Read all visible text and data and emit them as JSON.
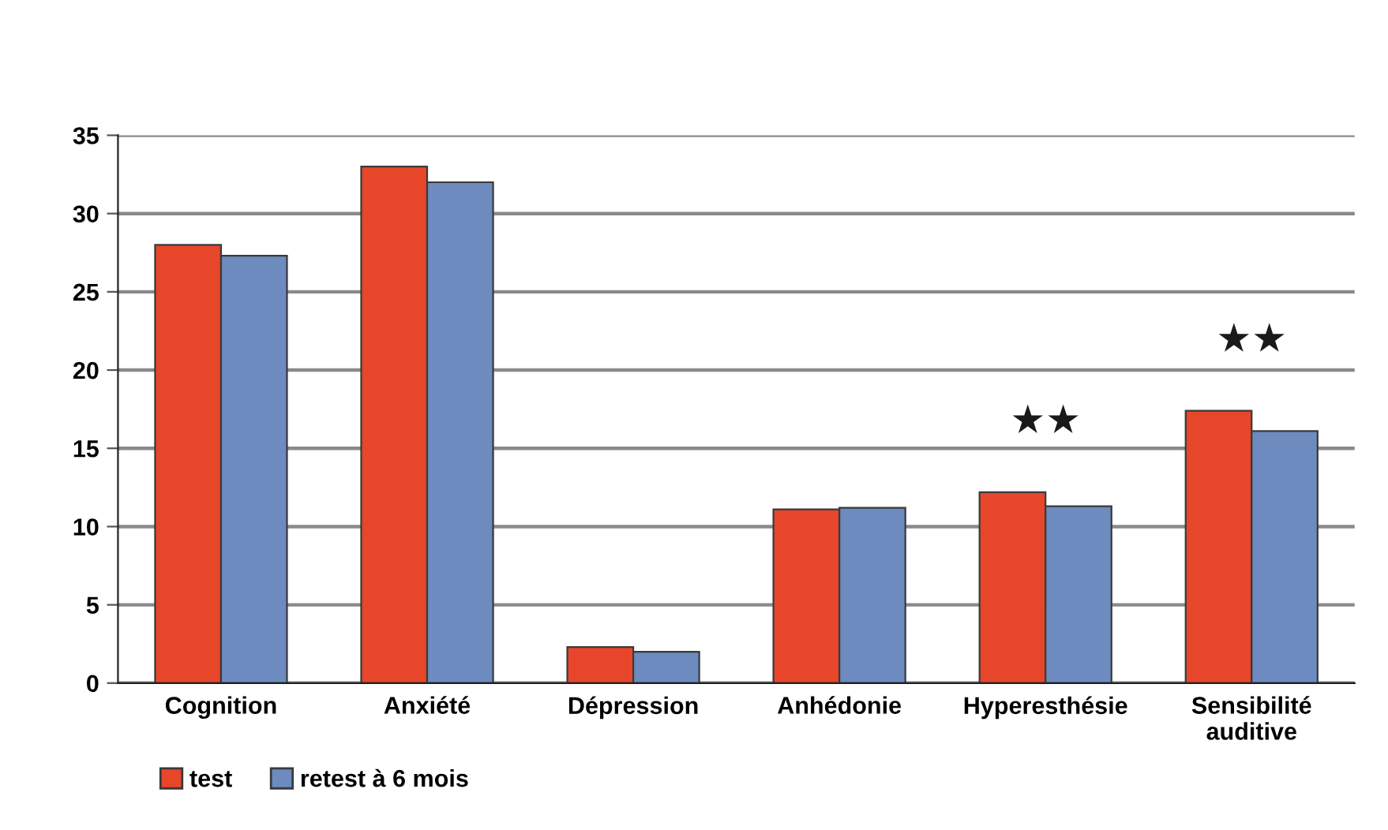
{
  "chart_data": {
    "type": "bar",
    "categories": [
      "Cognition",
      "Anxiété",
      "Dépression",
      "Anhédonie",
      "Hyperesthésie",
      "Sensibilité\nauditive"
    ],
    "series": [
      {
        "name": "test",
        "color": "#e8462a",
        "values": [
          28,
          33,
          2.3,
          11.1,
          12.2,
          17.4
        ]
      },
      {
        "name": "retest à 6 mois",
        "color": "#6d8bbf",
        "values": [
          27.3,
          32,
          2,
          11.2,
          11.3,
          16.1
        ]
      }
    ],
    "ylim": [
      0,
      35
    ],
    "yticks": [
      0,
      5,
      10,
      15,
      20,
      25,
      30,
      35
    ],
    "grid": "y",
    "legend": "bottom left",
    "annotations": [
      {
        "text": "★★",
        "x": "Hyperesthésie",
        "y": 12.2
      },
      {
        "text": "★★",
        "x": "Sensibilité\nauditive",
        "y": 17.4
      }
    ]
  }
}
